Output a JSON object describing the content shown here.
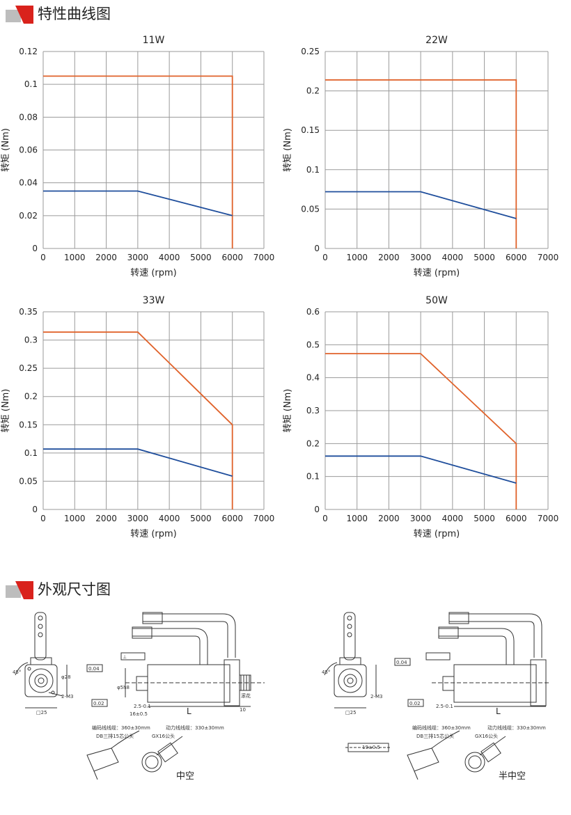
{
  "sections": {
    "curves_title": "特性曲线图",
    "dimensions_title": "外观尺寸图"
  },
  "colors": {
    "rated": "#1f4e9c",
    "peak": "#e0622a",
    "grid": "#9a9a9a",
    "marker_red": "#d9221c",
    "marker_gray": "#bdbdbd"
  },
  "chart_data": [
    {
      "type": "line",
      "title": "11W",
      "xlabel": "转速 (rpm)",
      "ylabel": "转矩 (Nm)",
      "xlim": [
        0,
        7000
      ],
      "ylim": [
        0,
        0.12
      ],
      "x_ticks": [
        "0",
        "1000",
        "2000",
        "3000",
        "4000",
        "5000",
        "6000",
        "7000"
      ],
      "y_ticks": [
        "0",
        "0.02",
        "0.04",
        "0.06",
        "0.08",
        "0.1",
        "0.12"
      ],
      "series": [
        {
          "role": "peak",
          "color": "#e0622a",
          "points": [
            [
              0,
              0.105
            ],
            [
              6000,
              0.105
            ],
            [
              6000,
              0
            ]
          ]
        },
        {
          "role": "rated",
          "color": "#1f4e9c",
          "points": [
            [
              0,
              0.035
            ],
            [
              3000,
              0.035
            ],
            [
              6000,
              0.02
            ]
          ]
        }
      ]
    },
    {
      "type": "line",
      "title": "22W",
      "xlabel": "转速 (rpm)",
      "ylabel": "转矩 (Nm)",
      "xlim": [
        0,
        7000
      ],
      "ylim": [
        0,
        0.25
      ],
      "x_ticks": [
        "0",
        "1000",
        "2000",
        "3000",
        "4000",
        "5000",
        "6000",
        "7000"
      ],
      "y_ticks": [
        "0",
        "0.05",
        "0.1",
        "0.15",
        "0.2",
        "0.25"
      ],
      "series": [
        {
          "role": "peak",
          "color": "#e0622a",
          "points": [
            [
              0,
              0.214
            ],
            [
              6000,
              0.214
            ],
            [
              6000,
              0
            ]
          ]
        },
        {
          "role": "rated",
          "color": "#1f4e9c",
          "points": [
            [
              0,
              0.072
            ],
            [
              3000,
              0.072
            ],
            [
              6000,
              0.038
            ]
          ]
        }
      ]
    },
    {
      "type": "line",
      "title": "33W",
      "xlabel": "转速 (rpm)",
      "ylabel": "转矩 (Nm)",
      "xlim": [
        0,
        7000
      ],
      "ylim": [
        0,
        0.35
      ],
      "x_ticks": [
        "0",
        "1000",
        "2000",
        "3000",
        "4000",
        "5000",
        "6000",
        "7000"
      ],
      "y_ticks": [
        "0",
        "0.05",
        "0.1",
        "0.15",
        "0.2",
        "0.25",
        "0.3",
        "0.35"
      ],
      "series": [
        {
          "role": "peak",
          "color": "#e0622a",
          "points": [
            [
              0,
              0.314
            ],
            [
              3000,
              0.314
            ],
            [
              6000,
              0.15
            ],
            [
              6000,
              0
            ]
          ]
        },
        {
          "role": "rated",
          "color": "#1f4e9c",
          "points": [
            [
              0,
              0.107
            ],
            [
              3000,
              0.107
            ],
            [
              6000,
              0.059
            ]
          ]
        }
      ]
    },
    {
      "type": "line",
      "title": "50W",
      "xlabel": "转速 (rpm)",
      "ylabel": "转矩 (Nm)",
      "xlim": [
        0,
        7000
      ],
      "ylim": [
        0,
        0.6
      ],
      "x_ticks": [
        "0",
        "1000",
        "2000",
        "3000",
        "4000",
        "5000",
        "6000",
        "7000"
      ],
      "y_ticks": [
        "0",
        "0.1",
        "0.2",
        "0.3",
        "0.4",
        "0.5",
        "0.6"
      ],
      "series": [
        {
          "role": "peak",
          "color": "#e0622a",
          "points": [
            [
              0,
              0.473
            ],
            [
              3000,
              0.473
            ],
            [
              6000,
              0.2
            ],
            [
              6000,
              0
            ]
          ]
        },
        {
          "role": "rated",
          "color": "#1f4e9c",
          "points": [
            [
              0,
              0.162
            ],
            [
              3000,
              0.162
            ],
            [
              6000,
              0.08
            ]
          ]
        }
      ]
    }
  ],
  "drawings": {
    "left": {
      "caption": "中空",
      "square_label": "□25",
      "angle_label": "45°",
      "dia_label": "φ28",
      "screw_label": "2-M3",
      "tol_a": "0.04",
      "tol_b": "0.02",
      "flat_label": "f",
      "perp_label": "⊥",
      "dim_shaft": "φ5h8",
      "dim_16": "16±0.5",
      "dim_25": "2.5-0.1",
      "dim_L": "L",
      "dim_10": "10",
      "knurl": "滚花",
      "enc_cable": "编码线线缆：360±30mm",
      "enc_conn": "DB三排15芯公头",
      "pow_cable": "动力线线缆：330±30mm",
      "pow_conn": "GX16公头"
    },
    "right": {
      "caption": "半中空",
      "square_label": "□25",
      "angle_label": "45°",
      "screw_label": "2-M3",
      "tol_a": "0.04",
      "tol_b": "0.02",
      "flat_label": "f",
      "dim_25": "2.5-0.1",
      "dim_L": "L",
      "shaft_len": "19±0.5",
      "enc_cable": "编码线线缆：360±30mm",
      "enc_conn": "DB三排15芯公头",
      "pow_cable": "动力线线缆：330±30mm",
      "pow_conn": "GX16公头"
    }
  }
}
